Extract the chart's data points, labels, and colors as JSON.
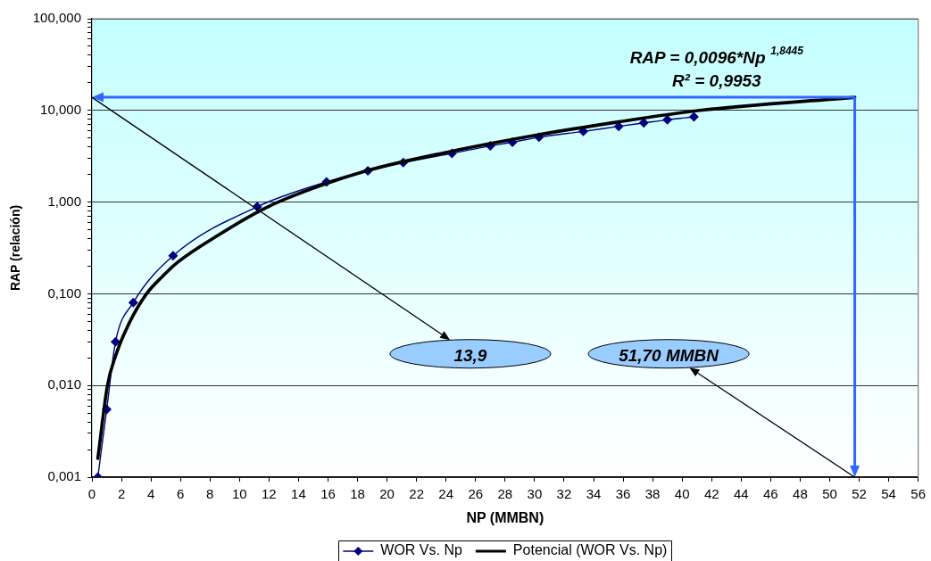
{
  "chart_data": {
    "type": "line",
    "xlabel": "NP (MMBN)",
    "ylabel": "RAP (relación)",
    "log": "y",
    "grid": "y",
    "legend": "bottom",
    "xlim": [
      0,
      56
    ],
    "xticks": [
      0,
      2,
      4,
      6,
      8,
      10,
      12,
      14,
      16,
      18,
      20,
      22,
      24,
      26,
      28,
      30,
      32,
      34,
      36,
      38,
      40,
      42,
      44,
      46,
      48,
      50,
      52,
      54,
      56
    ],
    "ylim": [
      0.001,
      100
    ],
    "yticks": [
      {
        "value": 0.001,
        "label": "0,001"
      },
      {
        "value": 0.002,
        "label": null
      },
      {
        "value": 0.003,
        "label": null
      },
      {
        "value": 0.004,
        "label": null
      },
      {
        "value": 0.005,
        "label": null
      },
      {
        "value": 0.006,
        "label": null
      },
      {
        "value": 0.007,
        "label": null
      },
      {
        "value": 0.008,
        "label": null
      },
      {
        "value": 0.009,
        "label": null
      },
      {
        "value": 0.01,
        "label": "0,010"
      },
      {
        "value": 0.02,
        "label": null
      },
      {
        "value": 0.03,
        "label": null
      },
      {
        "value": 0.04,
        "label": null
      },
      {
        "value": 0.05,
        "label": null
      },
      {
        "value": 0.06,
        "label": null
      },
      {
        "value": 0.07,
        "label": null
      },
      {
        "value": 0.08,
        "label": null
      },
      {
        "value": 0.09,
        "label": null
      },
      {
        "value": 0.1,
        "label": "0,100"
      },
      {
        "value": 0.2,
        "label": null
      },
      {
        "value": 0.3,
        "label": null
      },
      {
        "value": 0.4,
        "label": null
      },
      {
        "value": 0.5,
        "label": null
      },
      {
        "value": 0.6,
        "label": null
      },
      {
        "value": 0.7,
        "label": null
      },
      {
        "value": 0.8,
        "label": null
      },
      {
        "value": 0.9,
        "label": null
      },
      {
        "value": 1,
        "label": "1,000"
      },
      {
        "value": 2,
        "label": null
      },
      {
        "value": 3,
        "label": null
      },
      {
        "value": 4,
        "label": null
      },
      {
        "value": 5,
        "label": null
      },
      {
        "value": 6,
        "label": null
      },
      {
        "value": 7,
        "label": null
      },
      {
        "value": 8,
        "label": null
      },
      {
        "value": 9,
        "label": null
      },
      {
        "value": 10,
        "label": "10,000"
      },
      {
        "value": 20,
        "label": null
      },
      {
        "value": 30,
        "label": null
      },
      {
        "value": 40,
        "label": null
      },
      {
        "value": 50,
        "label": null
      },
      {
        "value": 60,
        "label": null
      },
      {
        "value": 70,
        "label": null
      },
      {
        "value": 80,
        "label": null
      },
      {
        "value": 90,
        "label": null
      },
      {
        "value": 100,
        "label": "100,000"
      }
    ],
    "series": [
      {
        "name": "WOR Vs. Np",
        "color": "#000080",
        "marker": "diamond",
        "x": [
          0.4,
          1.0,
          1.6,
          2.8,
          5.5,
          11.2,
          15.9,
          18.7,
          21.1,
          24.4,
          27.0,
          28.5,
          30.3,
          33.3,
          35.7,
          37.4,
          39.0,
          40.8
        ],
        "values": [
          0.001,
          0.0055,
          0.03,
          0.08,
          0.26,
          0.89,
          1.66,
          2.2,
          2.7,
          3.4,
          4.1,
          4.5,
          5.1,
          5.9,
          6.7,
          7.3,
          7.9,
          8.5
        ]
      },
      {
        "name": "Potencial (WOR Vs. Np)",
        "color": "#000000",
        "x": [
          0.4,
          1.05,
          1.6,
          2.5,
          3.7,
          4.7,
          5.8,
          8.5,
          11.5,
          13.1,
          18.6,
          24.3,
          30.2,
          35.7,
          41.2,
          51.7
        ],
        "values": [
          0.0016,
          0.01,
          0.021,
          0.047,
          0.1,
          0.15,
          0.22,
          0.43,
          0.82,
          1.08,
          2.19,
          3.56,
          5.4,
          7.5,
          10,
          13.9
        ]
      }
    ],
    "ref_lines": [
      {
        "axis": "y",
        "value": 13.9,
        "color": "#3366ff"
      },
      {
        "axis": "x",
        "value": 51.7,
        "color": "#3366ff"
      }
    ],
    "annotations": [
      "RAP = 0,0096*Np$^{1,8445}$",
      "R² = 0,9953",
      "13,9",
      "51,70 MMBN"
    ]
  }
}
